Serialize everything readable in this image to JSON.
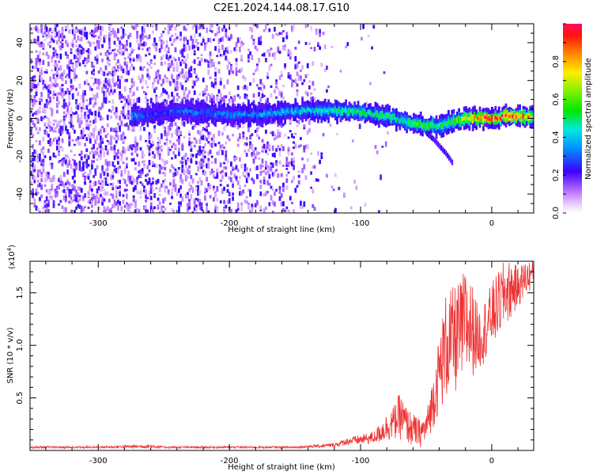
{
  "title": "C2E1.2024.144.08.17.G10",
  "colors": {
    "snr_line": "#ee3333",
    "spectrogram_background": "#ffffff",
    "dominant_noise": "#7a1cf0"
  },
  "chart_data": [
    {
      "type": "heatmap",
      "name": "spectrogram",
      "xlabel": "Height of straight line (km)",
      "ylabel": "Frequency (Hz)",
      "xlim": [
        -352,
        32
      ],
      "ylim": [
        -50,
        50
      ],
      "x_ticks": [
        -300,
        -200,
        -100,
        0
      ],
      "y_ticks": [
        -40,
        -20,
        0,
        20,
        40
      ],
      "x_tick_labels": [
        "-300",
        "-200",
        "-100",
        "0"
      ],
      "y_tick_labels": [
        "-40",
        "-20",
        "0",
        "20",
        "40"
      ],
      "grid": false,
      "signal_ridge": {
        "x": [
          -275,
          -260,
          -240,
          -220,
          -200,
          -180,
          -160,
          -140,
          -120,
          -100,
          -90,
          -80,
          -70,
          -60,
          -50,
          -40,
          -30,
          -20,
          -10,
          0,
          10,
          20,
          30
        ],
        "frequency_hz": [
          1,
          2,
          4,
          3,
          2,
          2,
          3,
          4,
          4,
          3,
          2,
          1,
          -1,
          -3,
          -4,
          -4,
          -2,
          0,
          0,
          0,
          1,
          1,
          1
        ],
        "amplitude": [
          0.35,
          0.25,
          0.3,
          0.32,
          0.33,
          0.35,
          0.38,
          0.42,
          0.48,
          0.5,
          0.5,
          0.52,
          0.45,
          0.55,
          0.6,
          0.5,
          0.6,
          0.7,
          0.85,
          0.95,
          0.95,
          0.9,
          0.75
        ]
      },
      "branch": {
        "x": [
          -50,
          -45,
          -40,
          -35,
          -30
        ],
        "frequency_hz": [
          -8,
          -11,
          -15,
          -19,
          -24
        ]
      },
      "noise_density": {
        "x": [
          -350,
          -300,
          -280,
          -260,
          -240,
          -220,
          -200,
          -180,
          -160,
          -140,
          -130,
          -120,
          -100,
          -80,
          -60
        ],
        "density": [
          0.9,
          0.9,
          0.85,
          0.7,
          0.8,
          0.75,
          0.55,
          0.5,
          0.5,
          0.3,
          0.12,
          0.06,
          0.03,
          0.02,
          0.0
        ]
      },
      "colorbar": {
        "label": "Normalized spectral amplitude",
        "range": [
          0,
          1
        ],
        "ticks": [
          0.0,
          0.2,
          0.4,
          0.6,
          0.8
        ],
        "tick_labels": [
          "0.0",
          "0.2",
          "0.4",
          "0.6",
          "0.8"
        ]
      }
    },
    {
      "type": "line",
      "name": "snr",
      "xlabel": "Height of straight line (km)",
      "ylabel": "SNR (10 * v/v)",
      "multiplier": "(x10",
      "multiplier_exp": "4",
      "multiplier_close": ")",
      "xlim": [
        -352,
        32
      ],
      "ylim": [
        0,
        1.8
      ],
      "x_ticks": [
        -300,
        -200,
        -100,
        0
      ],
      "y_ticks": [
        0.5,
        1.0,
        1.5
      ],
      "x_tick_labels": [
        "-300",
        "-200",
        "-100",
        "0"
      ],
      "y_tick_labels": [
        "0.5",
        "1.0",
        "1.5"
      ],
      "grid": false,
      "x": [
        -352,
        -300,
        -260,
        -250,
        -200,
        -150,
        -120,
        -110,
        -100,
        -90,
        -80,
        -75,
        -70,
        -65,
        -60,
        -55,
        -50,
        -45,
        -40,
        -35,
        -30,
        -25,
        -20,
        -15,
        -10,
        -5,
        0,
        5,
        10,
        15,
        20,
        25,
        32
      ],
      "envelope_low": [
        0.02,
        0.02,
        0.02,
        0.02,
        0.02,
        0.02,
        0.03,
        0.05,
        0.05,
        0.06,
        0.08,
        0.1,
        0.1,
        0.06,
        0.03,
        0.02,
        0.06,
        0.2,
        0.35,
        0.45,
        0.5,
        0.55,
        0.6,
        0.7,
        0.75,
        0.85,
        0.95,
        1.05,
        1.15,
        1.25,
        1.35,
        1.45,
        1.55
      ],
      "envelope_high": [
        0.04,
        0.04,
        0.06,
        0.04,
        0.04,
        0.04,
        0.07,
        0.12,
        0.15,
        0.18,
        0.35,
        0.42,
        0.55,
        0.42,
        0.35,
        0.3,
        0.35,
        0.7,
        1.1,
        1.5,
        1.55,
        1.6,
        1.75,
        1.6,
        1.35,
        1.45,
        1.6,
        1.7,
        1.82,
        1.8,
        1.75,
        1.8,
        1.82
      ]
    }
  ]
}
